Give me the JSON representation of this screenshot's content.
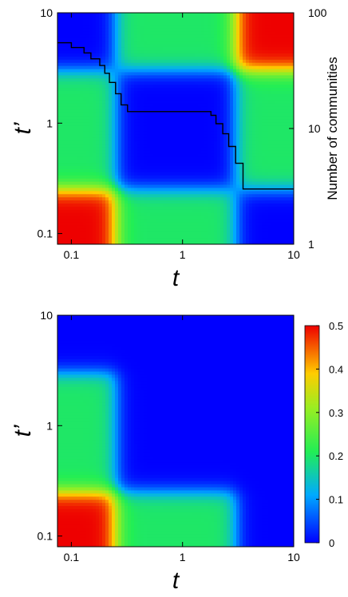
{
  "chart_data": [
    {
      "type": "heatmap",
      "xlabel": "t",
      "ylabel": "t’",
      "xscale": "log",
      "yscale": "log",
      "xlim": [
        0.075,
        10
      ],
      "ylim": [
        0.08,
        10
      ],
      "x_ticks": [
        {
          "value": 0.1,
          "label": "0.1"
        },
        {
          "value": 1,
          "label": "1"
        },
        {
          "value": 10,
          "label": "10"
        }
      ],
      "y_ticks": [
        {
          "value": 0.1,
          "label": "0.1"
        },
        {
          "value": 1,
          "label": "1"
        },
        {
          "value": 10,
          "label": "10"
        }
      ],
      "right_axis": {
        "label": "Number of communities",
        "scale": "log",
        "lim": [
          1,
          100
        ],
        "ticks": [
          {
            "value": 1,
            "label": "1"
          },
          {
            "value": 10,
            "label": "10"
          },
          {
            "value": 100,
            "label": "100"
          }
        ]
      },
      "block_edges": [
        0.075,
        0.25,
        3,
        10
      ],
      "block_values": [
        [
          0.5,
          0.2,
          0.0
        ],
        [
          0.2,
          0.0,
          0.2
        ],
        [
          0.0,
          0.2,
          0.5
        ]
      ],
      "line_series": {
        "x": [
          0.075,
          0.1,
          0.13,
          0.15,
          0.18,
          0.2,
          0.22,
          0.25,
          0.28,
          0.32,
          0.5,
          1,
          1.5,
          1.8,
          2,
          2.3,
          2.6,
          3,
          3.5,
          5,
          10
        ],
        "y": [
          55,
          50,
          45,
          40,
          35,
          30,
          25,
          20,
          16,
          14,
          14,
          14,
          14,
          13,
          11,
          9,
          7,
          5,
          3,
          3,
          3
        ]
      }
    },
    {
      "type": "heatmap",
      "xlabel": "t",
      "ylabel": "t’",
      "xscale": "log",
      "yscale": "log",
      "xlim": [
        0.075,
        10
      ],
      "ylim": [
        0.08,
        10
      ],
      "x_ticks": [
        {
          "value": 0.1,
          "label": "0.1"
        },
        {
          "value": 1,
          "label": "1"
        },
        {
          "value": 10,
          "label": "10"
        }
      ],
      "y_ticks": [
        {
          "value": 0.1,
          "label": "0.1"
        },
        {
          "value": 1,
          "label": "1"
        },
        {
          "value": 10,
          "label": "10"
        }
      ],
      "block_edges": [
        0.075,
        0.25,
        3,
        10
      ],
      "block_values": [
        [
          0.5,
          0.2,
          0.0
        ],
        [
          0.2,
          0.0,
          0.0
        ],
        [
          0.0,
          0.0,
          0.0
        ]
      ],
      "colorbar": {
        "range": [
          0,
          0.5
        ],
        "ticks": [
          0,
          0.1,
          0.2,
          0.3,
          0.4,
          0.5
        ],
        "tick_labels": [
          "0",
          "0.1",
          "0.2",
          "0.3",
          "0.4",
          "0.5"
        ]
      }
    }
  ]
}
